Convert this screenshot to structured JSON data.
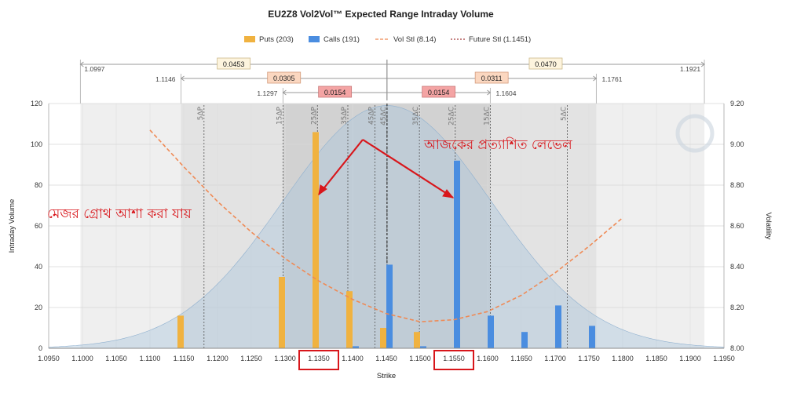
{
  "chart_data": {
    "type": "bar",
    "title": "EU2Z8 Vol2Vol™ Expected Range Intraday Volume",
    "xlabel": "Strike",
    "ylabel": "Intraday Volume",
    "y2label": "Volatility",
    "xlim": [
      1.095,
      1.195
    ],
    "ylim": [
      0,
      120
    ],
    "y2lim": [
      8.0,
      9.2
    ],
    "x_ticks": [
      "1.0950",
      "1.1000",
      "1.1050",
      "1.1100",
      "1.1150",
      "1.1200",
      "1.1250",
      "1.1300",
      "1.1350",
      "1.1400",
      "1.1450",
      "1.1500",
      "1.1550",
      "1.1600",
      "1.1650",
      "1.1700",
      "1.1750",
      "1.1800",
      "1.1850",
      "1.1900",
      "1.1950"
    ],
    "y_ticks": [
      "0",
      "20",
      "40",
      "60",
      "80",
      "100",
      "120"
    ],
    "y2_ticks": [
      "8.00",
      "8.20",
      "8.40",
      "8.60",
      "8.80",
      "9.00",
      "9.20"
    ],
    "legend": {
      "position": "top-center",
      "items": [
        {
          "label": "Puts (203)",
          "color": "#f0b240",
          "kind": "box"
        },
        {
          "label": "Calls (191)",
          "color": "#4a8de0",
          "kind": "box"
        },
        {
          "label": "Vol Stl (8.14)",
          "color": "#ef8a55",
          "kind": "dash"
        },
        {
          "label": "Future Stl (1.1451)",
          "color": "#a33a3a",
          "kind": "dot"
        }
      ]
    },
    "series": [
      {
        "name": "Puts (203)",
        "color": "#f0b240",
        "points": [
          [
            1.115,
            16
          ],
          [
            1.13,
            35
          ],
          [
            1.135,
            106
          ],
          [
            1.14,
            28
          ],
          [
            1.145,
            10
          ],
          [
            1.15,
            8
          ]
        ]
      },
      {
        "name": "Calls (191)",
        "color": "#4a8de0",
        "points": [
          [
            1.14,
            1
          ],
          [
            1.145,
            41
          ],
          [
            1.15,
            1
          ],
          [
            1.155,
            92
          ],
          [
            1.16,
            16
          ],
          [
            1.165,
            8
          ],
          [
            1.17,
            21
          ],
          [
            1.175,
            11
          ]
        ]
      }
    ],
    "vol_curve": {
      "name": "Vol Stl (8.14)",
      "color": "#ef8a55",
      "points": [
        [
          1.11,
          9.07
        ],
        [
          1.115,
          8.89
        ],
        [
          1.12,
          8.72
        ],
        [
          1.125,
          8.57
        ],
        [
          1.13,
          8.44
        ],
        [
          1.135,
          8.33
        ],
        [
          1.14,
          8.24
        ],
        [
          1.145,
          8.17
        ],
        [
          1.15,
          8.13
        ],
        [
          1.155,
          8.14
        ],
        [
          1.16,
          8.18
        ],
        [
          1.165,
          8.26
        ],
        [
          1.17,
          8.37
        ],
        [
          1.175,
          8.5
        ],
        [
          1.18,
          8.64
        ]
      ]
    },
    "future_settle": 1.1451,
    "distribution": {
      "center": 1.1451,
      "sigma": 0.0154,
      "peak": 119
    },
    "delta_lines": [
      {
        "label": "5ΔP",
        "x": 1.118
      },
      {
        "label": "15ΔP",
        "x": 1.1297
      },
      {
        "label": "25ΔP",
        "x": 1.1348
      },
      {
        "label": "35ΔP",
        "x": 1.1393
      },
      {
        "label": "45ΔP",
        "x": 1.1433
      },
      {
        "label": "45ΔC",
        "x": 1.1451
      },
      {
        "label": "35ΔC",
        "x": 1.1499
      },
      {
        "label": "25ΔC",
        "x": 1.1552
      },
      {
        "label": "15ΔC",
        "x": 1.1604
      },
      {
        "label": "5ΔC",
        "x": 1.1718
      }
    ],
    "range_bands": [
      {
        "lo": 1.0997,
        "hi": 1.1921,
        "shade": "#efefef"
      },
      {
        "lo": 1.1146,
        "hi": 1.1761,
        "shade": "#e3e3e3"
      },
      {
        "lo": 1.1297,
        "hi": 1.1604,
        "shade": "#d2d2d2"
      }
    ],
    "range_rows": [
      {
        "lo": 1.0997,
        "hi": 1.1921,
        "lo_label": "1.0997",
        "hi_label": "1.1921",
        "left": "0.0453",
        "right": "0.0470",
        "fill": "#fdf4de",
        "stroke": "#ccb98a"
      },
      {
        "lo": 1.1146,
        "hi": 1.1761,
        "lo_label": "1.1146",
        "hi_label": "1.1761",
        "left": "0.0305",
        "right": "0.0311",
        "fill": "#fbd7c0",
        "stroke": "#d49b7c"
      },
      {
        "lo": 1.1297,
        "hi": 1.1604,
        "lo_label": "1.1297",
        "hi_label": "1.1604",
        "left": "0.0154",
        "right": "0.0154",
        "fill": "#f4a4a4",
        "stroke": "#c97a7a"
      }
    ],
    "annotations": [
      {
        "text": "আজকের প্রত্যাশিত লেভেল",
        "color": "#d8161b"
      },
      {
        "text": "মেজর গ্রোথ আশা করা যায়",
        "color": "#d8161b"
      }
    ],
    "highlighted_ticks": [
      "1.1350",
      "1.1550"
    ],
    "grid": true
  }
}
